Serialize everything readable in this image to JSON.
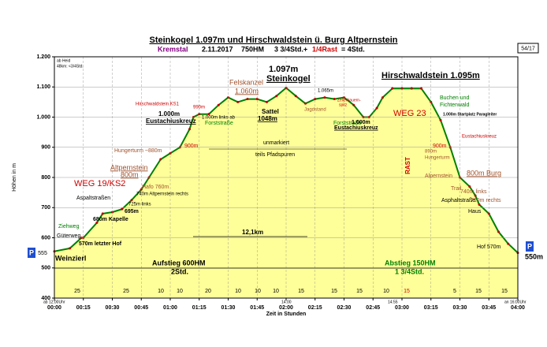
{
  "chart_data": {
    "type": "area",
    "title": "Steinkogel 1.097m und Hirschwaldstein ü. Burg Altpernstein",
    "subtitle_parts": [
      "Kremstal",
      "2.11.2017",
      "750HM",
      "3 3/4Std.+",
      "1/4Rast",
      "= 4Std."
    ],
    "page_number": "54/17",
    "parking": "P",
    "xlabel": "Zeit in Stunden",
    "ylabel": "Höhen in m",
    "x": [
      0,
      8,
      14,
      15,
      22,
      25,
      30,
      35,
      40,
      45,
      49,
      55,
      60,
      65,
      70,
      72,
      75,
      80,
      85,
      90,
      95,
      100,
      105,
      110,
      115,
      120,
      125,
      130,
      135,
      140,
      145,
      150,
      155,
      160,
      163,
      167,
      170,
      175,
      180,
      185,
      190,
      195,
      200,
      205,
      210,
      215,
      218,
      220,
      225,
      230,
      235,
      240
    ],
    "values": [
      555,
      565,
      600,
      600,
      650,
      680,
      685,
      695,
      725,
      760,
      800,
      860,
      880,
      900,
      960,
      1000,
      1010,
      1010,
      1040,
      1065,
      1050,
      1060,
      1060,
      1050,
      1070,
      1097,
      1070,
      1045,
      1060,
      1065,
      1060,
      1065,
      1040,
      1000,
      1000,
      1030,
      1065,
      1095,
      1095,
      1095,
      1095,
      1050,
      990,
      900,
      800,
      770,
      740,
      710,
      680,
      620,
      580,
      550
    ],
    "color": "#ffff99",
    "line_color": "#008000",
    "xlim": [
      0,
      240
    ],
    "ylim": [
      400,
      1200
    ],
    "xticks": [
      {
        "value": 0,
        "label": "00:00"
      },
      {
        "value": 15,
        "label": "00:15"
      },
      {
        "value": 30,
        "label": "00:30"
      },
      {
        "value": 45,
        "label": "00:45"
      },
      {
        "value": 60,
        "label": "01:00"
      },
      {
        "value": 75,
        "label": "01:15"
      },
      {
        "value": 90,
        "label": "01:30"
      },
      {
        "value": 105,
        "label": "01:45"
      },
      {
        "value": 120,
        "label": "02:00"
      },
      {
        "value": 135,
        "label": "02:15"
      },
      {
        "value": 150,
        "label": "02:30"
      },
      {
        "value": 165,
        "label": "02:45"
      },
      {
        "value": 180,
        "label": "03:00"
      },
      {
        "value": 195,
        "label": "03:15"
      },
      {
        "value": 210,
        "label": "03:30"
      },
      {
        "value": 225,
        "label": "03:45"
      },
      {
        "value": 240,
        "label": "04:00"
      }
    ],
    "yticks": [
      400,
      500,
      600,
      700,
      800,
      900,
      {
        "value": 1000,
        "label": "1.000"
      },
      {
        "value": 1100,
        "label": "1.100"
      },
      {
        "value": 1200,
        "label": "1.200"
      }
    ],
    "grid": true,
    "segments": [
      "25",
      "25",
      "10",
      "10",
      "20",
      "10",
      "10",
      "10",
      "15",
      "15",
      "15",
      "10",
      "15",
      "5",
      "15",
      "15"
    ],
    "annotations": [
      "ab Heid",
      "48km: <3/4Std.",
      "555",
      "Weinzierl",
      "Ziehweg",
      "Güterweg",
      "570m letzter Hof",
      "Aspaltstraßen",
      "WEG 19/KS2",
      "680m Kapelle",
      "695m",
      "725m links",
      "740m Altpernstein rechts",
      "Hafo 760m",
      "Altpernstein",
      "800m",
      "Hungerturm ~880m",
      "900m",
      "Hirschwaldstein KS1",
      "990m",
      "1.000m",
      "Eustachiuskreuz",
      "1.000m links ab",
      "Forststraße",
      "Felskanzel",
      "1.060m",
      "1.097m",
      "Steinkogel",
      "Sattel",
      "1048m",
      "unmarkiert",
      "teils Pfadspuren",
      "12,1km",
      "Jagdstand",
      "1.065m",
      "Zellerbauern-",
      "spitz",
      "Forststraße",
      "1.000m",
      "Eustachiuskreuz",
      "Hirschwaldstein 1.095m",
      "WEG 23",
      "RAST",
      "Buchen und",
      "Fichtenwald",
      "1.000m Startplatz Paragleiter",
      "Eustachiuskreuz",
      "900m",
      "890m",
      "Hungerturm",
      "Alpernstein",
      "800m Burg",
      "Trail",
      "740m links",
      "710m rechts",
      "Asphaltstraße",
      "Haus",
      "Hof 570m",
      "Aufstieg 600HM",
      "2Std.",
      "Abstieg 150HM",
      "1 3/4Std.",
      "ab 12:00Uhr",
      "14:00",
      "14:55",
      "an 16:00Uhr",
      "550m"
    ]
  }
}
